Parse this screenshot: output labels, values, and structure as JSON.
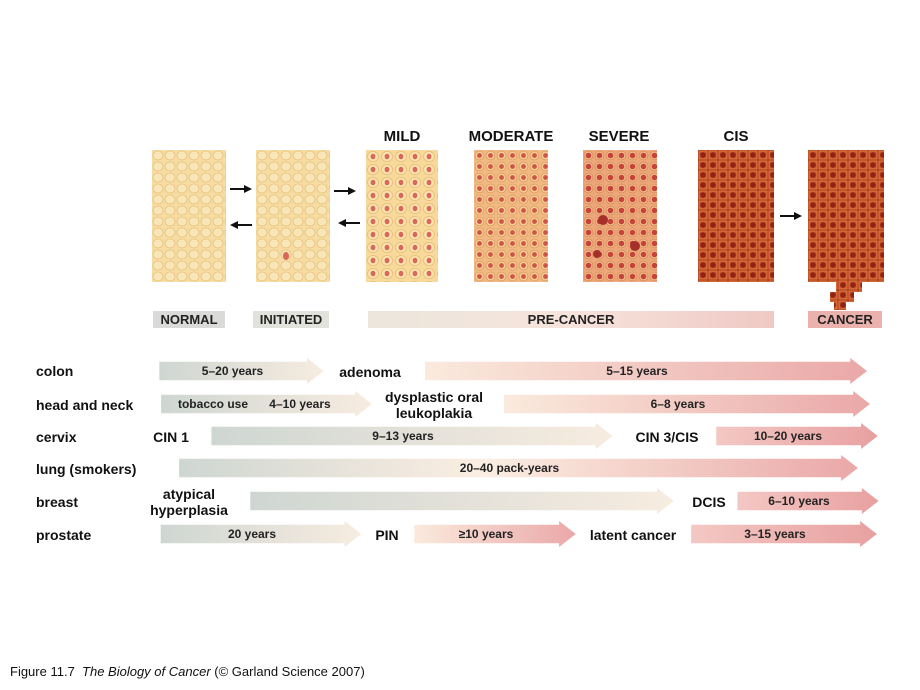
{
  "stages": {
    "mild": "MILD",
    "moderate": "MODERATE",
    "severe": "SEVERE",
    "cis": "CIS"
  },
  "categories": {
    "normal": "NORMAL",
    "initiated": "INITIATED",
    "precancer": "PRE-CANCER",
    "cancer": "CANCER"
  },
  "rows": {
    "colon": {
      "label": "colon",
      "seg1": "5–20 years",
      "stage1": "adenoma",
      "seg2": "5–15 years"
    },
    "head_neck": {
      "label": "head and neck",
      "seg1a": "tobacco use",
      "seg1b": "4–10 years",
      "stage1_line1": "dysplastic oral",
      "stage1_line2": "leukoplakia",
      "seg2": "6–8 years"
    },
    "cervix": {
      "label": "cervix",
      "stage0": "CIN 1",
      "seg1": "9–13 years",
      "stage1": "CIN 3/CIS",
      "seg2": "10–20 years"
    },
    "lung": {
      "label": "lung (smokers)",
      "seg1": "20–40 pack-years"
    },
    "breast": {
      "label": "breast",
      "stage0_line1": "atypical",
      "stage0_line2": "hyperplasia",
      "stage1": "DCIS",
      "seg2": "6–10 years"
    },
    "prostate": {
      "label": "prostate",
      "seg1": "20 years",
      "stage1": "PIN",
      "seg2": "≥10 years",
      "stage2": "latent cancer",
      "seg3": "3–15 years"
    }
  },
  "caption": {
    "prefix": "Figure 11.7",
    "title": "The Biology of Cancer",
    "suffix": "(© Garland Science 2007)"
  }
}
